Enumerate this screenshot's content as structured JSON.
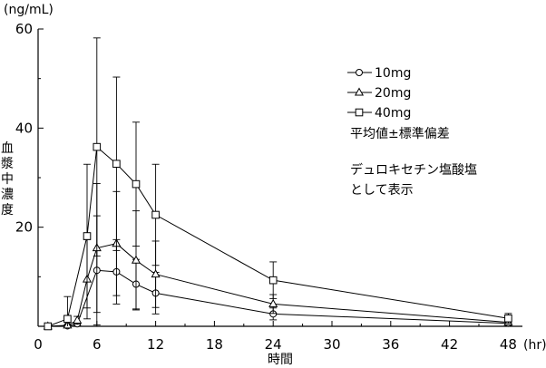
{
  "chart_data": {
    "type": "line",
    "y_unit_label": "(ng/mL)",
    "x_unit_label": "(hr)",
    "xlabel": "時間",
    "ylabel": "血漿中濃度",
    "xlim": [
      0,
      50
    ],
    "ylim": [
      0,
      60
    ],
    "x_ticks": [
      0,
      6,
      12,
      18,
      24,
      30,
      36,
      42,
      48
    ],
    "y_ticks": [
      0,
      20,
      40,
      60
    ],
    "grid": false,
    "legend_position": "top-right",
    "series": [
      {
        "name": "10mg",
        "marker": "circle",
        "x": [
          1,
          3,
          4,
          6,
          8,
          10,
          12,
          24,
          48
        ],
        "y": [
          0.0,
          0.1,
          0.5,
          11.3,
          11.0,
          8.5,
          6.7,
          2.5,
          0.6
        ],
        "error": [
          0.0,
          0.1,
          0.3,
          11.0,
          6.5,
          5.0,
          4.2,
          1.2,
          0.4
        ]
      },
      {
        "name": "20mg",
        "marker": "triangle",
        "x": [
          1,
          3,
          4,
          5,
          6,
          8,
          10,
          12,
          24,
          48
        ],
        "y": [
          0.0,
          0.2,
          1.2,
          9.5,
          15.8,
          16.7,
          13.3,
          10.5,
          4.5,
          0.8
        ],
        "error": [
          0.0,
          0.1,
          0.8,
          8.0,
          13.0,
          10.5,
          10.0,
          6.7,
          1.9,
          0.5
        ]
      },
      {
        "name": "40mg",
        "marker": "square",
        "x": [
          1,
          3,
          5,
          6,
          8,
          10,
          12,
          24,
          48
        ],
        "y": [
          0.0,
          1.5,
          18.2,
          36.2,
          32.8,
          28.7,
          22.5,
          9.3,
          1.6
        ],
        "error": [
          0.0,
          4.5,
          14.5,
          22.0,
          17.5,
          12.5,
          10.2,
          3.7,
          1.0
        ]
      }
    ],
    "annotations": [
      "平均値±標準偏差",
      "デュロキセチン塩酸塩",
      "として表示"
    ]
  }
}
